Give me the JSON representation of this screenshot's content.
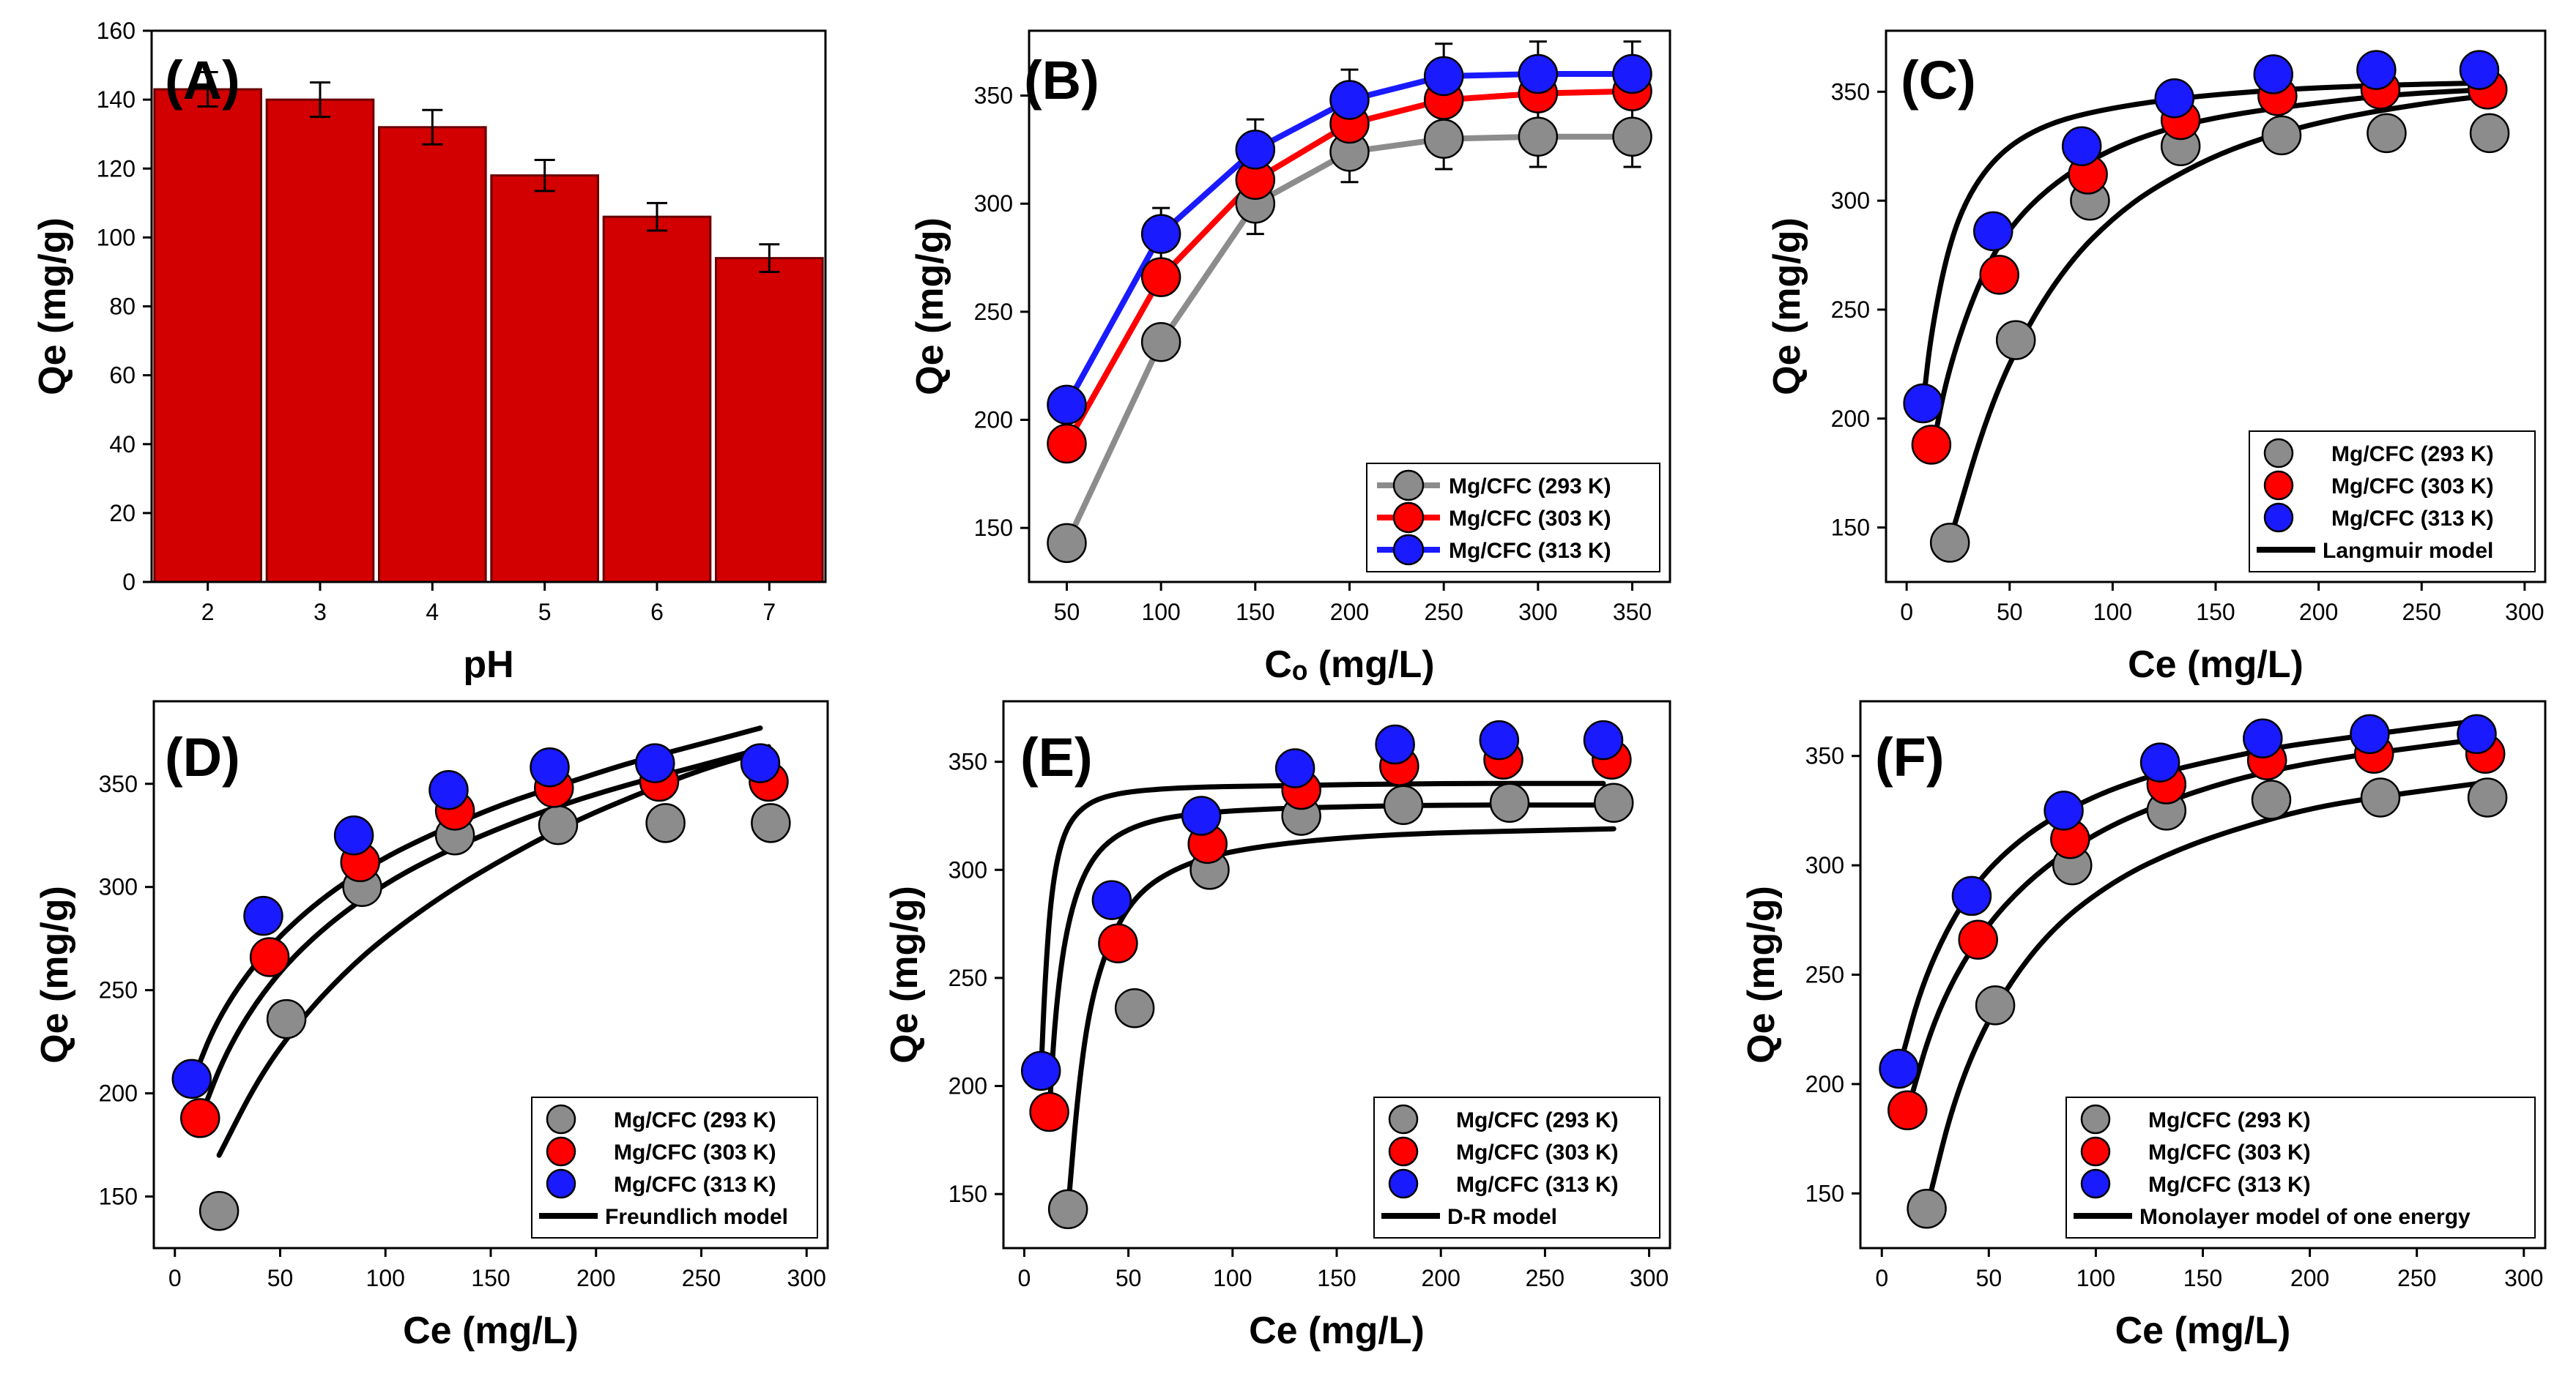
{
  "colors": {
    "g293": "#8c8c8c",
    "r303": "#ff0000",
    "b313": "#1a1aff",
    "bar": "#d20000",
    "fit": "#000000"
  },
  "chart_data": [
    {
      "id": "A",
      "type": "bar",
      "label": "(A)",
      "xlabel": "pH",
      "ylabel": "Qe (mg/g)",
      "categories": [
        "2",
        "3",
        "4",
        "5",
        "6",
        "7"
      ],
      "values": [
        143,
        140,
        132,
        118,
        106,
        94
      ],
      "errors": [
        5,
        5,
        5,
        4.5,
        4,
        4
      ],
      "ylim": [
        0,
        160
      ],
      "yticks": [
        "0",
        "20",
        "40",
        "60",
        "80",
        "100",
        "120",
        "140",
        "160"
      ]
    },
    {
      "id": "B",
      "type": "line",
      "label": "(B)",
      "xlabel": "Cₒ (mg/L)",
      "ylabel": "Qe (mg/g)",
      "xlim": [
        30,
        370
      ],
      "ylim": [
        125,
        380
      ],
      "xticks": [
        "50",
        "100",
        "150",
        "200",
        "250",
        "300",
        "350"
      ],
      "yticks": [
        "150",
        "200",
        "250",
        "300",
        "350"
      ],
      "legend_position": "bottom-right",
      "series": [
        {
          "name": "Mg/CFC (293 K)",
          "color": "g293",
          "x": [
            50,
            100,
            150,
            200,
            250,
            300,
            350
          ],
          "y": [
            143,
            236,
            300,
            324,
            330,
            331,
            331
          ],
          "err": [
            0,
            0,
            14,
            14,
            14,
            14,
            14
          ]
        },
        {
          "name": "Mg/CFC (303 K)",
          "color": "r303",
          "x": [
            50,
            100,
            150,
            200,
            250,
            300,
            350
          ],
          "y": [
            189,
            266,
            311,
            337,
            348,
            351,
            352
          ],
          "err": [
            0,
            0,
            0,
            0,
            0,
            0,
            0
          ]
        },
        {
          "name": "Mg/CFC (313 K)",
          "color": "b313",
          "x": [
            50,
            100,
            150,
            200,
            250,
            300,
            350
          ],
          "y": [
            207,
            286,
            325,
            348,
            359,
            360,
            360
          ],
          "err": [
            0,
            12,
            14,
            14,
            15,
            15,
            15
          ]
        }
      ]
    },
    {
      "id": "C",
      "type": "scatter",
      "label": "(C)",
      "xlabel": "Ce (mg/L)",
      "ylabel": "Qe (mg/g)",
      "xlim": [
        -10,
        310
      ],
      "ylim": [
        125,
        378
      ],
      "xticks": [
        "0",
        "50",
        "100",
        "150",
        "200",
        "250",
        "300"
      ],
      "yticks": [
        "150",
        "200",
        "250",
        "300",
        "350"
      ],
      "legend_position": "bottom-right",
      "model_name": "Langmuir model",
      "series": [
        {
          "name": "Mg/CFC (293 K)",
          "color": "g293",
          "x": [
            21,
            53,
            89,
            133,
            182,
            233,
            283
          ],
          "y": [
            143,
            236,
            300,
            325,
            330,
            331,
            331
          ],
          "fit": [
            [
              21,
              144
            ],
            [
              40,
              205
            ],
            [
              60,
              245
            ],
            [
              80,
              273
            ],
            [
              100,
              292
            ],
            [
              120,
              306
            ],
            [
              150,
              321
            ],
            [
              180,
              331
            ],
            [
              210,
              338
            ],
            [
              240,
              343
            ],
            [
              270,
              347
            ],
            [
              283,
              348
            ]
          ]
        },
        {
          "name": "Mg/CFC (303 K)",
          "color": "r303",
          "x": [
            12,
            45,
            88,
            133,
            180,
            230,
            282
          ],
          "y": [
            188,
            266,
            312,
            337,
            348,
            351,
            351
          ],
          "fit": [
            [
              12,
              183
            ],
            [
              20,
              222
            ],
            [
              35,
              263
            ],
            [
              50,
              288
            ],
            [
              70,
              307
            ],
            [
              95,
              322
            ],
            [
              125,
              333
            ],
            [
              160,
              340
            ],
            [
              200,
              345
            ],
            [
              240,
              349
            ],
            [
              282,
              351
            ]
          ]
        },
        {
          "name": "Mg/CFC (313 K)",
          "color": "b313",
          "x": [
            8,
            42,
            85,
            130,
            178,
            228,
            278
          ],
          "y": [
            207,
            286,
            325,
            347,
            358,
            360,
            360
          ],
          "fit": [
            [
              8,
              207
            ],
            [
              12,
              240
            ],
            [
              20,
              278
            ],
            [
              30,
              303
            ],
            [
              45,
              322
            ],
            [
              65,
              334
            ],
            [
              90,
              341
            ],
            [
              130,
              347
            ],
            [
              180,
              351
            ],
            [
              230,
              353
            ],
            [
              278,
              354
            ]
          ]
        }
      ]
    },
    {
      "id": "D",
      "type": "scatter",
      "label": "(D)",
      "xlabel": "Ce (mg/L)",
      "ylabel": "Qe (mg/g)",
      "xlim": [
        -10,
        310
      ],
      "ylim": [
        125,
        390
      ],
      "xticks": [
        "0",
        "50",
        "100",
        "150",
        "200",
        "250",
        "300"
      ],
      "yticks": [
        "150",
        "200",
        "250",
        "300",
        "350"
      ],
      "legend_position": "bottom-right",
      "model_name": "Freundlich model",
      "series": [
        {
          "name": "Mg/CFC (293 K)",
          "color": "g293",
          "x": [
            21,
            53,
            89,
            133,
            182,
            233,
            283
          ],
          "y": [
            143,
            236,
            300,
            325,
            330,
            331,
            331
          ],
          "fit": [
            [
              21,
              170
            ],
            [
              40,
              208
            ],
            [
              60,
              236
            ],
            [
              80,
              258
            ],
            [
              100,
              276
            ],
            [
              130,
              298
            ],
            [
              160,
              316
            ],
            [
              190,
              332
            ],
            [
              220,
              345
            ],
            [
              250,
              357
            ],
            [
              280,
              366
            ]
          ]
        },
        {
          "name": "Mg/CFC (303 K)",
          "color": "r303",
          "x": [
            12,
            45,
            88,
            133,
            180,
            230,
            282
          ],
          "y": [
            188,
            266,
            312,
            337,
            348,
            351,
            351
          ],
          "fit": [
            [
              12,
              188
            ],
            [
              25,
              222
            ],
            [
              45,
              254
            ],
            [
              70,
              280
            ],
            [
              100,
              302
            ],
            [
              130,
              318
            ],
            [
              160,
              331
            ],
            [
              190,
              342
            ],
            [
              220,
              351
            ],
            [
              250,
              359
            ],
            [
              282,
              368
            ]
          ]
        },
        {
          "name": "Mg/CFC (313 K)",
          "color": "b313",
          "x": [
            8,
            42,
            85,
            130,
            178,
            228,
            278
          ],
          "y": [
            207,
            286,
            325,
            347,
            358,
            360,
            360
          ],
          "fit": [
            [
              8,
              205
            ],
            [
              20,
              236
            ],
            [
              40,
              266
            ],
            [
              65,
              291
            ],
            [
              95,
              312
            ],
            [
              125,
              327
            ],
            [
              155,
              340
            ],
            [
              185,
              350
            ],
            [
              215,
              360
            ],
            [
              245,
              368
            ],
            [
              278,
              377
            ]
          ]
        }
      ]
    },
    {
      "id": "E",
      "type": "scatter",
      "label": "(E)",
      "xlabel": "Ce (mg/L)",
      "ylabel": "Qe (mg/g)",
      "xlim": [
        -10,
        310
      ],
      "ylim": [
        125,
        378
      ],
      "xticks": [
        "0",
        "50",
        "100",
        "150",
        "200",
        "250",
        "300"
      ],
      "yticks": [
        "150",
        "200",
        "250",
        "300",
        "350"
      ],
      "legend_position": "bottom-right",
      "model_name": "D-R model",
      "series": [
        {
          "name": "Mg/CFC (293 K)",
          "color": "g293",
          "x": [
            21,
            53,
            89,
            133,
            182,
            233,
            283
          ],
          "y": [
            143,
            236,
            300,
            325,
            330,
            331,
            331
          ],
          "fit": [
            [
              21,
              143
            ],
            [
              26,
              200
            ],
            [
              32,
              240
            ],
            [
              42,
              270
            ],
            [
              55,
              290
            ],
            [
              75,
              302
            ],
            [
              100,
              309
            ],
            [
              140,
              314
            ],
            [
              190,
              317
            ],
            [
              240,
              318
            ],
            [
              283,
              319
            ]
          ]
        },
        {
          "name": "Mg/CFC (303 K)",
          "color": "r303",
          "x": [
            12,
            45,
            88,
            133,
            180,
            230,
            282
          ],
          "y": [
            188,
            266,
            312,
            337,
            348,
            351,
            351
          ],
          "fit": [
            [
              12,
              188
            ],
            [
              15,
              235
            ],
            [
              20,
              272
            ],
            [
              28,
              298
            ],
            [
              40,
              314
            ],
            [
              60,
              323
            ],
            [
              90,
              327
            ],
            [
              140,
              329
            ],
            [
              200,
              330
            ],
            [
              282,
              330
            ]
          ]
        },
        {
          "name": "Mg/CFC (313 K)",
          "color": "b313",
          "x": [
            8,
            42,
            85,
            130,
            178,
            228,
            278
          ],
          "y": [
            207,
            286,
            325,
            347,
            358,
            360,
            360
          ],
          "fit": [
            [
              8,
              205
            ],
            [
              10,
              250
            ],
            [
              13,
              290
            ],
            [
              18,
              315
            ],
            [
              26,
              328
            ],
            [
              40,
              335
            ],
            [
              70,
              338
            ],
            [
              120,
              339
            ],
            [
              200,
              340
            ],
            [
              278,
              340
            ]
          ]
        }
      ]
    },
    {
      "id": "F",
      "type": "scatter",
      "label": "(F)",
      "xlabel": "Ce (mg/L)",
      "ylabel": "Qe (mg/g)",
      "xlim": [
        -10,
        310
      ],
      "ylim": [
        125,
        375
      ],
      "xticks": [
        "0",
        "50",
        "100",
        "150",
        "200",
        "250",
        "300"
      ],
      "yticks": [
        "150",
        "200",
        "250",
        "300",
        "350"
      ],
      "legend_position": "bottom-right",
      "model_name": "Monolayer model of one energy",
      "series": [
        {
          "name": "Mg/CFC (293 K)",
          "color": "g293",
          "x": [
            21,
            53,
            89,
            133,
            182,
            233,
            283
          ],
          "y": [
            143,
            236,
            300,
            325,
            330,
            331,
            331
          ],
          "fit": [
            [
              21,
              143
            ],
            [
              35,
              198
            ],
            [
              55,
              240
            ],
            [
              80,
              272
            ],
            [
              110,
              294
            ],
            [
              140,
              308
            ],
            [
              170,
              318
            ],
            [
              200,
              326
            ],
            [
              230,
              331
            ],
            [
              260,
              335
            ],
            [
              283,
              338
            ]
          ]
        },
        {
          "name": "Mg/CFC (303 K)",
          "color": "r303",
          "x": [
            12,
            45,
            88,
            133,
            180,
            230,
            282
          ],
          "y": [
            188,
            266,
            312,
            337,
            348,
            351,
            351
          ],
          "fit": [
            [
              12,
              188
            ],
            [
              25,
              232
            ],
            [
              45,
              268
            ],
            [
              70,
              295
            ],
            [
              100,
              315
            ],
            [
              130,
              328
            ],
            [
              160,
              338
            ],
            [
              190,
              345
            ],
            [
              220,
              350
            ],
            [
              250,
              354
            ],
            [
              282,
              358
            ]
          ]
        },
        {
          "name": "Mg/CFC (313 K)",
          "color": "b313",
          "x": [
            8,
            42,
            85,
            130,
            178,
            228,
            278
          ],
          "y": [
            207,
            286,
            325,
            347,
            358,
            360,
            360
          ],
          "fit": [
            [
              8,
              207
            ],
            [
              20,
              250
            ],
            [
              40,
              288
            ],
            [
              65,
              313
            ],
            [
              95,
              330
            ],
            [
              125,
              341
            ],
            [
              155,
              348
            ],
            [
              185,
              354
            ],
            [
              215,
              358
            ],
            [
              245,
              362
            ],
            [
              278,
              366
            ]
          ]
        }
      ]
    }
  ]
}
